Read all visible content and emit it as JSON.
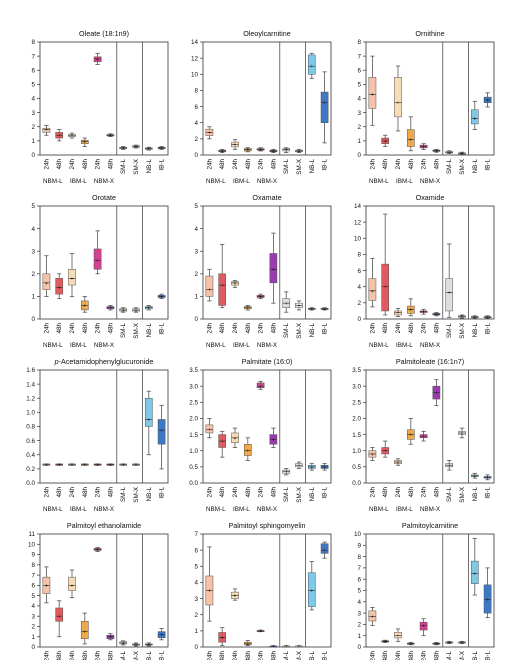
{
  "figure": {
    "sample_labels": [
      "24h",
      "48h",
      "24h",
      "48h",
      "24h",
      "48h",
      "SM-L",
      "SM-X",
      "NB-L",
      "IB-L"
    ],
    "group_labels": [
      "NBM-L",
      "IBM-L",
      "NBM-X"
    ]
  },
  "colors": {
    "NBM-L 24h": "#f6c2a8",
    "NBM-L 48h": "#e05a5f",
    "IBM-L 24h": "#f8dcb5",
    "IBM-L 48h": "#f0a848",
    "NBM-X 24h": "#d2438f",
    "NBM-X 48h": "#9a3bb0",
    "SM-L": "#dedede",
    "SM-X": "#ededed",
    "NB-L": "#7ec8e8",
    "IB-L": "#3d78c4",
    "whisker": "#555555",
    "axis": "#333333"
  },
  "chart_data": [
    {
      "type": "box",
      "title": "Oleate (18:1n9)",
      "italic_prefix": "",
      "ylim": [
        0,
        8
      ],
      "yticks": [
        0,
        1,
        2,
        3,
        4,
        5,
        6,
        7,
        8
      ],
      "ytick_decimals": 0,
      "boxes": [
        [
          1.4,
          1.6,
          1.8,
          1.9,
          2.1
        ],
        [
          1.0,
          1.2,
          1.4,
          1.6,
          1.8
        ],
        [
          1.2,
          1.3,
          1.4,
          1.45,
          1.55
        ],
        [
          0.6,
          0.8,
          0.95,
          1.05,
          1.2
        ],
        [
          6.4,
          6.6,
          6.8,
          6.95,
          7.2
        ],
        [
          1.3,
          1.35,
          1.4,
          1.45,
          1.5
        ],
        [
          0.4,
          0.45,
          0.5,
          0.55,
          0.6
        ],
        [
          0.5,
          0.55,
          0.6,
          0.65,
          0.7
        ],
        [
          0.35,
          0.4,
          0.45,
          0.5,
          0.55
        ],
        [
          0.4,
          0.45,
          0.5,
          0.55,
          0.6
        ]
      ]
    },
    {
      "type": "box",
      "title": "Oleoylcarnitine",
      "italic_prefix": "",
      "ylim": [
        0,
        14
      ],
      "yticks": [
        0,
        2,
        4,
        6,
        8,
        10,
        12,
        14
      ],
      "ytick_decimals": 0,
      "boxes": [
        [
          2.0,
          2.4,
          2.8,
          3.2,
          3.5
        ],
        [
          0.3,
          0.4,
          0.5,
          0.6,
          0.7
        ],
        [
          0.7,
          1.0,
          1.3,
          1.6,
          1.9
        ],
        [
          0.4,
          0.5,
          0.7,
          0.8,
          0.9
        ],
        [
          0.5,
          0.6,
          0.7,
          0.8,
          0.9
        ],
        [
          0.3,
          0.4,
          0.5,
          0.6,
          0.7
        ],
        [
          0.3,
          0.5,
          0.7,
          0.8,
          0.9
        ],
        [
          0.3,
          0.4,
          0.5,
          0.6,
          0.7
        ],
        [
          9.5,
          10.0,
          11.0,
          12.4,
          12.6
        ],
        [
          1.5,
          4.0,
          6.5,
          7.8,
          10.3
        ]
      ]
    },
    {
      "type": "box",
      "title": "Ornithine",
      "italic_prefix": "",
      "ylim": [
        0,
        8
      ],
      "yticks": [
        0,
        1,
        2,
        3,
        4,
        5,
        6,
        7,
        8
      ],
      "ytick_decimals": 0,
      "boxes": [
        [
          2.1,
          3.3,
          4.3,
          5.5,
          7.0
        ],
        [
          0.6,
          0.8,
          1.0,
          1.2,
          1.4
        ],
        [
          1.7,
          2.7,
          3.7,
          5.5,
          6.3
        ],
        [
          0.3,
          0.6,
          1.1,
          1.8,
          2.7
        ],
        [
          0.4,
          0.5,
          0.6,
          0.7,
          0.8
        ],
        [
          0.2,
          0.25,
          0.3,
          0.35,
          0.4
        ],
        [
          0.1,
          0.15,
          0.2,
          0.25,
          0.3
        ],
        [
          0.05,
          0.1,
          0.12,
          0.15,
          0.2
        ],
        [
          1.8,
          2.2,
          2.6,
          3.2,
          3.8
        ],
        [
          3.4,
          3.7,
          3.9,
          4.1,
          4.4
        ]
      ]
    },
    {
      "type": "box",
      "title": "Orotate",
      "italic_prefix": "",
      "ylim": [
        0,
        5
      ],
      "yticks": [
        0,
        1,
        2,
        3,
        4,
        5
      ],
      "ytick_decimals": 0,
      "boxes": [
        [
          1.0,
          1.3,
          1.6,
          2.0,
          2.8
        ],
        [
          0.9,
          1.1,
          1.4,
          1.8,
          2.0
        ],
        [
          1.0,
          1.5,
          1.8,
          2.2,
          2.9
        ],
        [
          0.3,
          0.4,
          0.6,
          0.8,
          1.0
        ],
        [
          2.0,
          2.2,
          2.6,
          3.1,
          3.9
        ],
        [
          0.4,
          0.45,
          0.5,
          0.55,
          0.6
        ],
        [
          0.3,
          0.35,
          0.4,
          0.45,
          0.5
        ],
        [
          0.3,
          0.35,
          0.4,
          0.45,
          0.5
        ],
        [
          0.4,
          0.45,
          0.5,
          0.55,
          0.6
        ],
        [
          0.9,
          0.95,
          1.0,
          1.05,
          1.1
        ]
      ]
    },
    {
      "type": "box",
      "title": "Oxamate",
      "italic_prefix": "",
      "ylim": [
        0,
        5
      ],
      "yticks": [
        0,
        1,
        2,
        3,
        4,
        5
      ],
      "ytick_decimals": 0,
      "boxes": [
        [
          0.8,
          1.0,
          1.3,
          1.9,
          2.2
        ],
        [
          0.5,
          0.6,
          1.5,
          2.0,
          3.3
        ],
        [
          1.4,
          1.5,
          1.6,
          1.65,
          1.7
        ],
        [
          0.4,
          0.45,
          0.5,
          0.55,
          0.6
        ],
        [
          0.9,
          0.95,
          1.0,
          1.05,
          1.1
        ],
        [
          0.7,
          1.6,
          2.2,
          2.9,
          3.8
        ],
        [
          0.3,
          0.5,
          0.7,
          0.9,
          1.2
        ],
        [
          0.4,
          0.5,
          0.6,
          0.7,
          0.8
        ],
        [
          0.4,
          0.42,
          0.45,
          0.47,
          0.5
        ],
        [
          0.4,
          0.42,
          0.45,
          0.47,
          0.5
        ]
      ]
    },
    {
      "type": "box",
      "title": "Oxamide",
      "italic_prefix": "",
      "ylim": [
        0,
        14
      ],
      "yticks": [
        0,
        2,
        4,
        6,
        8,
        10,
        12,
        14
      ],
      "ytick_decimals": 0,
      "boxes": [
        [
          1.5,
          2.3,
          3.5,
          5.0,
          7.5
        ],
        [
          0.5,
          1.0,
          4.0,
          6.8,
          13.0
        ],
        [
          0.3,
          0.5,
          0.8,
          1.0,
          1.3
        ],
        [
          0.4,
          0.7,
          1.2,
          1.6,
          2.5
        ],
        [
          0.6,
          0.8,
          0.9,
          1.0,
          1.2
        ],
        [
          0.4,
          0.5,
          0.6,
          0.7,
          0.8
        ],
        [
          0.2,
          1.0,
          3.3,
          5.0,
          9.3
        ],
        [
          0.1,
          0.2,
          0.3,
          0.4,
          0.5
        ],
        [
          0.1,
          0.2,
          0.25,
          0.3,
          0.4
        ],
        [
          0.1,
          0.2,
          0.25,
          0.3,
          0.4
        ]
      ]
    },
    {
      "type": "box",
      "title": "-Acetamidophenylglucuronide",
      "italic_prefix": "p",
      "ylim": [
        0,
        1.6
      ],
      "yticks": [
        0,
        0.2,
        0.4,
        0.6,
        0.8,
        1.0,
        1.2,
        1.4,
        1.6
      ],
      "ytick_decimals": 1,
      "boxes": [
        [
          0.25,
          0.25,
          0.26,
          0.27,
          0.27
        ],
        [
          0.25,
          0.25,
          0.26,
          0.27,
          0.27
        ],
        [
          0.25,
          0.25,
          0.26,
          0.27,
          0.27
        ],
        [
          0.25,
          0.25,
          0.26,
          0.27,
          0.27
        ],
        [
          0.25,
          0.25,
          0.26,
          0.27,
          0.27
        ],
        [
          0.25,
          0.25,
          0.26,
          0.27,
          0.27
        ],
        [
          0.25,
          0.25,
          0.26,
          0.27,
          0.27
        ],
        [
          0.25,
          0.25,
          0.26,
          0.27,
          0.27
        ],
        [
          0.4,
          0.8,
          0.9,
          1.2,
          1.3
        ],
        [
          0.2,
          0.55,
          0.75,
          0.9,
          1.1
        ]
      ]
    },
    {
      "type": "box",
      "title": "Palmitate (16:0)",
      "italic_prefix": "",
      "ylim": [
        0,
        3.5
      ],
      "yticks": [
        0,
        0.5,
        1.0,
        1.5,
        2.0,
        2.5,
        3.0,
        3.5
      ],
      "ytick_decimals": 1,
      "boxes": [
        [
          1.4,
          1.55,
          1.65,
          1.8,
          2.0
        ],
        [
          0.8,
          1.1,
          1.3,
          1.5,
          1.6
        ],
        [
          1.1,
          1.25,
          1.4,
          1.55,
          1.7
        ],
        [
          0.7,
          0.85,
          1.0,
          1.2,
          1.4
        ],
        [
          2.9,
          2.95,
          3.0,
          3.1,
          3.15
        ],
        [
          1.1,
          1.2,
          1.35,
          1.5,
          1.7
        ],
        [
          0.25,
          0.3,
          0.35,
          0.4,
          0.45
        ],
        [
          0.45,
          0.5,
          0.55,
          0.6,
          0.65
        ],
        [
          0.4,
          0.45,
          0.5,
          0.55,
          0.6
        ],
        [
          0.4,
          0.45,
          0.5,
          0.55,
          0.6
        ]
      ]
    },
    {
      "type": "box",
      "title": "Palmitoleate (16:1n7)",
      "italic_prefix": "",
      "ylim": [
        0,
        3.5
      ],
      "yticks": [
        0,
        0.5,
        1.0,
        1.5,
        2.0,
        2.5,
        3.0,
        3.5
      ],
      "ytick_decimals": 1,
      "boxes": [
        [
          0.7,
          0.8,
          0.9,
          1.0,
          1.1
        ],
        [
          0.8,
          0.9,
          1.0,
          1.1,
          1.3
        ],
        [
          0.55,
          0.6,
          0.65,
          0.7,
          0.75
        ],
        [
          1.2,
          1.35,
          1.5,
          1.65,
          2.0
        ],
        [
          1.3,
          1.4,
          1.45,
          1.5,
          1.6
        ],
        [
          2.4,
          2.6,
          2.8,
          3.0,
          3.2
        ],
        [
          0.4,
          0.5,
          0.55,
          0.6,
          0.7
        ],
        [
          1.4,
          1.5,
          1.55,
          1.6,
          1.7
        ],
        [
          0.15,
          0.2,
          0.22,
          0.25,
          0.3
        ],
        [
          0.1,
          0.15,
          0.18,
          0.2,
          0.25
        ]
      ]
    },
    {
      "type": "box",
      "title": "Palmitoyl ethanolamide",
      "italic_prefix": "",
      "ylim": [
        0,
        11
      ],
      "yticks": [
        0,
        1,
        2,
        3,
        4,
        5,
        6,
        7,
        8,
        9,
        10,
        11
      ],
      "ytick_decimals": 0,
      "boxes": [
        [
          4.3,
          5.2,
          6.0,
          6.8,
          7.8
        ],
        [
          1.0,
          2.5,
          3.0,
          3.8,
          4.5
        ],
        [
          4.8,
          5.5,
          6.0,
          6.8,
          7.5
        ],
        [
          0.3,
          0.8,
          1.5,
          2.5,
          3.3
        ],
        [
          9.3,
          9.4,
          9.5,
          9.6,
          9.7
        ],
        [
          0.7,
          0.8,
          1.0,
          1.15,
          1.3
        ],
        [
          0.2,
          0.3,
          0.4,
          0.5,
          0.6
        ],
        [
          0.1,
          0.2,
          0.25,
          0.3,
          0.4
        ],
        [
          0.1,
          0.2,
          0.25,
          0.3,
          0.4
        ],
        [
          0.7,
          0.9,
          1.2,
          1.5,
          1.8
        ]
      ]
    },
    {
      "type": "box",
      "title": "Palmitoyl sphingomyelin",
      "italic_prefix": "",
      "ylim": [
        0,
        7
      ],
      "yticks": [
        0,
        1,
        2,
        3,
        4,
        5,
        6,
        7
      ],
      "ytick_decimals": 0,
      "boxes": [
        [
          1.6,
          2.6,
          3.5,
          4.4,
          6.2
        ],
        [
          0.1,
          0.3,
          0.6,
          0.9,
          1.2
        ],
        [
          2.9,
          3.0,
          3.2,
          3.4,
          3.6
        ],
        [
          0.1,
          0.15,
          0.2,
          0.3,
          0.4
        ],
        [
          0.95,
          0.98,
          1.0,
          1.02,
          1.05
        ],
        [
          0.02,
          0.04,
          0.05,
          0.06,
          0.08
        ],
        [
          0.02,
          0.04,
          0.05,
          0.06,
          0.08
        ],
        [
          0.02,
          0.04,
          0.05,
          0.06,
          0.08
        ],
        [
          2.3,
          2.5,
          3.5,
          4.6,
          5.3
        ],
        [
          5.5,
          5.8,
          6.0,
          6.4,
          6.5
        ]
      ]
    },
    {
      "type": "box",
      "title": "Palmitoylcarnitine",
      "italic_prefix": "",
      "ylim": [
        0,
        10
      ],
      "yticks": [
        0,
        1,
        2,
        3,
        4,
        5,
        6,
        7,
        8,
        9,
        10
      ],
      "ytick_decimals": 0,
      "boxes": [
        [
          1.9,
          2.3,
          2.7,
          3.2,
          3.5
        ],
        [
          0.4,
          0.45,
          0.5,
          0.55,
          0.6
        ],
        [
          0.5,
          0.8,
          1.0,
          1.3,
          1.6
        ],
        [
          0.2,
          0.25,
          0.3,
          0.35,
          0.4
        ],
        [
          1.0,
          1.5,
          1.9,
          2.2,
          2.5
        ],
        [
          0.2,
          0.25,
          0.3,
          0.35,
          0.4
        ],
        [
          0.3,
          0.35,
          0.4,
          0.45,
          0.5
        ],
        [
          0.3,
          0.35,
          0.4,
          0.45,
          0.5
        ],
        [
          4.6,
          5.6,
          6.5,
          7.6,
          9.6
        ],
        [
          2.6,
          3.0,
          4.2,
          5.5,
          7.0
        ]
      ]
    }
  ]
}
